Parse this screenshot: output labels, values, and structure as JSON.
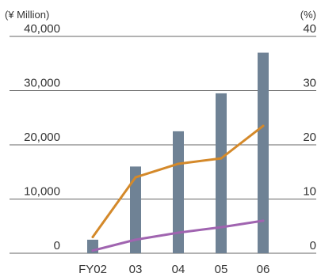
{
  "chart_data": {
    "type": "bar",
    "left_unit": "(¥ Million)",
    "right_unit": "(%)",
    "categories": [
      "FY02",
      "03",
      "04",
      "05",
      "06"
    ],
    "left_ticks": [
      "40,000",
      "30,000",
      "20,000",
      "10,000",
      "0"
    ],
    "right_ticks": [
      "40",
      "30",
      "20",
      "10",
      "0"
    ],
    "left_ylim": [
      0,
      40000
    ],
    "right_ylim": [
      0,
      40
    ],
    "grid": "horizontal",
    "legend": "none",
    "series": [
      {
        "type": "bar",
        "axis": "left",
        "color": "#6f8295",
        "values": [
          2500,
          16000,
          22500,
          29500,
          37000
        ]
      },
      {
        "type": "line",
        "axis": "right",
        "color": "#d4892a",
        "values": [
          3,
          14,
          16.5,
          17.5,
          23.5
        ]
      },
      {
        "type": "line",
        "axis": "right",
        "color": "#a064b0",
        "values": [
          0.5,
          2.5,
          3.8,
          4.8,
          6
        ]
      }
    ]
  }
}
